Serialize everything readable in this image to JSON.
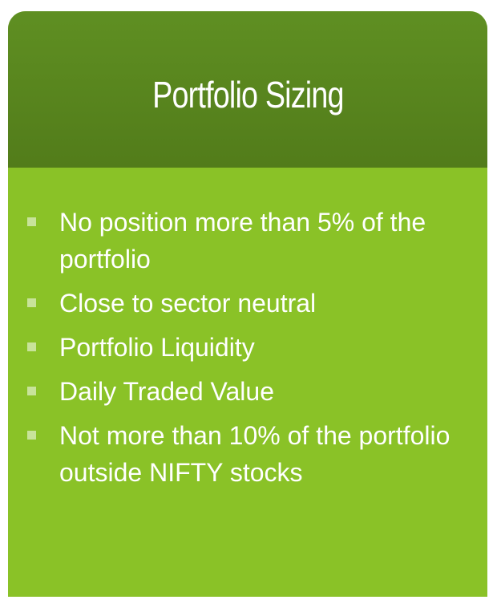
{
  "slide": {
    "title": "Portfolio Sizing",
    "bullets": [
      "No position more than 5% of the portfolio",
      "Close to sector neutral",
      "Portfolio Liquidity",
      "Daily Traded Value",
      "Not more than 10% of the portfolio outside NIFTY stocks"
    ]
  },
  "colors": {
    "header_bg": "#5a8720",
    "body_bg": "#8ac227",
    "text": "#ffffff",
    "bullet_marker": "#c8e39a"
  }
}
